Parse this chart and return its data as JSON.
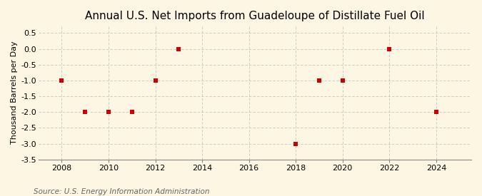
{
  "title": "Annual U.S. Net Imports from Guadeloupe of Distillate Fuel Oil",
  "ylabel": "Thousand Barrels per Day",
  "source": "Source: U.S. Energy Information Administration",
  "years": [
    2008,
    2009,
    2010,
    2011,
    2012,
    2013,
    2018,
    2019,
    2020,
    2022,
    2024
  ],
  "values": [
    -1,
    -2,
    -2,
    -2,
    -1,
    0,
    -3,
    -1,
    -1,
    0,
    -2
  ],
  "xlim": [
    2007.0,
    2025.5
  ],
  "ylim": [
    -3.5,
    0.75
  ],
  "yticks": [
    0.5,
    0.0,
    -0.5,
    -1.0,
    -1.5,
    -2.0,
    -2.5,
    -3.0,
    -3.5
  ],
  "xticks": [
    2008,
    2010,
    2012,
    2014,
    2016,
    2018,
    2020,
    2022,
    2024
  ],
  "marker_color": "#cc0000",
  "marker": "s",
  "marker_size": 4,
  "grid_color": "#bbbbbb",
  "bg_color": "#fdf6e3",
  "title_fontsize": 11,
  "title_fontweight": "normal",
  "label_fontsize": 8,
  "tick_fontsize": 8,
  "source_fontsize": 7.5
}
